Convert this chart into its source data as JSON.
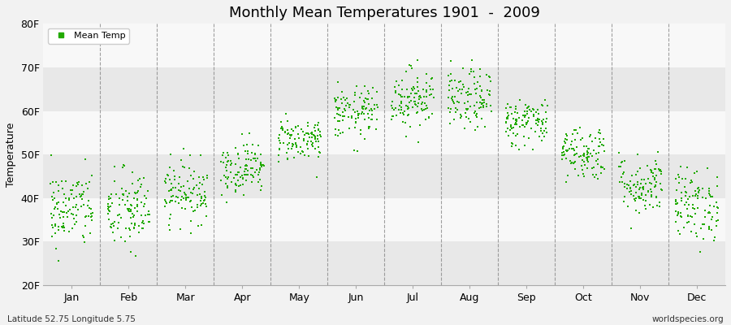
{
  "title": "Monthly Mean Temperatures 1901  -  2009",
  "ylabel": "Temperature",
  "subtitle_left": "Latitude 52.75 Longitude 5.75",
  "subtitle_right": "worldspecies.org",
  "legend_label": "Mean Temp",
  "dot_color": "#22aa00",
  "background_color": "#f2f2f2",
  "band_colors": [
    "#e8e8e8",
    "#f8f8f8"
  ],
  "ylim": [
    20,
    80
  ],
  "yticks": [
    20,
    30,
    40,
    50,
    60,
    70,
    80
  ],
  "ytick_labels": [
    "20F",
    "30F",
    "40F",
    "50F",
    "60F",
    "70F",
    "80F"
  ],
  "months": [
    "Jan",
    "Feb",
    "Mar",
    "Apr",
    "May",
    "Jun",
    "Jul",
    "Aug",
    "Sep",
    "Oct",
    "Nov",
    "Dec"
  ],
  "mean_temps_F": [
    37.5,
    37.0,
    41.5,
    47.0,
    53.5,
    59.5,
    63.0,
    62.5,
    57.5,
    50.5,
    43.0,
    38.5
  ],
  "std_temps_F": [
    4.5,
    4.8,
    3.5,
    3.0,
    2.5,
    3.0,
    3.5,
    3.5,
    2.8,
    3.2,
    3.5,
    4.2
  ],
  "n_years": 109,
  "seed": 42,
  "dot_size": 3,
  "figwidth": 9.0,
  "figheight": 4.0,
  "dpi": 100
}
